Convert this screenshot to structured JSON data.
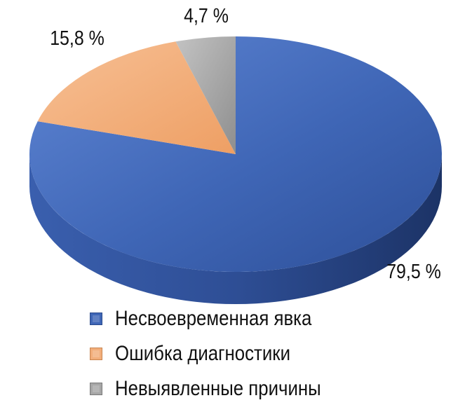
{
  "chart_data": {
    "type": "pie",
    "style": "3d",
    "slices": [
      {
        "label": "Несвоевременная явка",
        "value": 79.5,
        "value_label": "79,5 %",
        "color": "#4166b1"
      },
      {
        "label": "Ошибка диагностики",
        "value": 15.8,
        "value_label": "15,8 %",
        "color": "#f2ae7b"
      },
      {
        "label": "Невыявленные причины",
        "value": 4.7,
        "value_label": "4,7 %",
        "color": "#a6a6a6"
      }
    ],
    "legend_position": "bottom"
  }
}
